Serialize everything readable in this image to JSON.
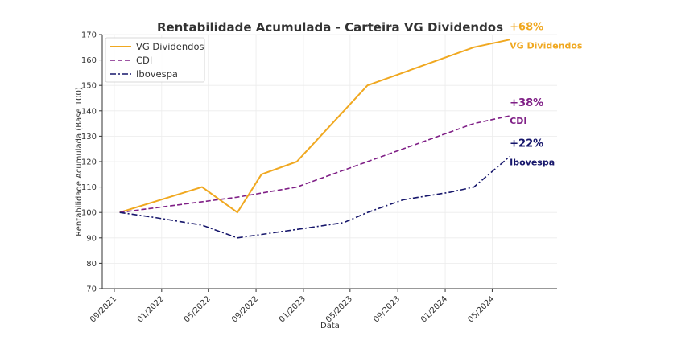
{
  "chart_data": {
    "type": "line",
    "title": "Rentabilidade Acumulada - Carteira VG Dividendos",
    "xlabel": "Data",
    "ylabel": "Rentabilidade Acumulada (Base 100)",
    "ylim": [
      70,
      170
    ],
    "yticks": [
      70,
      80,
      90,
      100,
      110,
      120,
      130,
      140,
      150,
      160,
      170
    ],
    "xlim": [
      "2021-08-01",
      "2024-10-15"
    ],
    "xticks": [
      {
        "date": "2021-09-01",
        "label": "09/2021"
      },
      {
        "date": "2022-01-01",
        "label": "01/2022"
      },
      {
        "date": "2022-05-01",
        "label": "05/2022"
      },
      {
        "date": "2022-09-01",
        "label": "09/2022"
      },
      {
        "date": "2023-01-01",
        "label": "01/2023"
      },
      {
        "date": "2023-05-01",
        "label": "05/2023"
      },
      {
        "date": "2023-09-01",
        "label": "09/2023"
      },
      {
        "date": "2024-01-01",
        "label": "01/2024"
      },
      {
        "date": "2024-05-01",
        "label": "05/2024"
      }
    ],
    "grid": true,
    "legend_position": "top-left",
    "series": [
      {
        "name": "VG Dividendos",
        "color": "#F0A820",
        "style": "solid",
        "end_label": "+68%",
        "end_name": "VG Dividendos",
        "points": [
          {
            "x": "2021-09-15",
            "y": 100
          },
          {
            "x": "2022-04-15",
            "y": 110
          },
          {
            "x": "2022-07-15",
            "y": 100
          },
          {
            "x": "2022-09-15",
            "y": 115
          },
          {
            "x": "2022-12-15",
            "y": 120
          },
          {
            "x": "2023-06-15",
            "y": 150
          },
          {
            "x": "2024-03-15",
            "y": 165
          },
          {
            "x": "2024-06-15",
            "y": 168
          }
        ]
      },
      {
        "name": "CDI",
        "color": "#7F1F86",
        "style": "dashed",
        "end_label": "+38%",
        "end_name": "CDI",
        "points": [
          {
            "x": "2021-09-15",
            "y": 100
          },
          {
            "x": "2022-07-15",
            "y": 106
          },
          {
            "x": "2022-12-15",
            "y": 110
          },
          {
            "x": "2023-06-15",
            "y": 120
          },
          {
            "x": "2024-03-15",
            "y": 135
          },
          {
            "x": "2024-06-15",
            "y": 138
          }
        ]
      },
      {
        "name": "Ibovespa",
        "color": "#16166B",
        "style": "dashdot",
        "end_label": "+22%",
        "end_name": "Ibovespa",
        "points": [
          {
            "x": "2021-09-15",
            "y": 100
          },
          {
            "x": "2021-12-15",
            "y": 98
          },
          {
            "x": "2022-04-15",
            "y": 95
          },
          {
            "x": "2022-07-15",
            "y": 90
          },
          {
            "x": "2022-10-15",
            "y": 92
          },
          {
            "x": "2023-01-15",
            "y": 94
          },
          {
            "x": "2023-04-15",
            "y": 96
          },
          {
            "x": "2023-06-15",
            "y": 100
          },
          {
            "x": "2023-09-15",
            "y": 105
          },
          {
            "x": "2024-01-15",
            "y": 108
          },
          {
            "x": "2024-03-15",
            "y": 110
          },
          {
            "x": "2024-06-15",
            "y": 122
          }
        ]
      }
    ]
  }
}
